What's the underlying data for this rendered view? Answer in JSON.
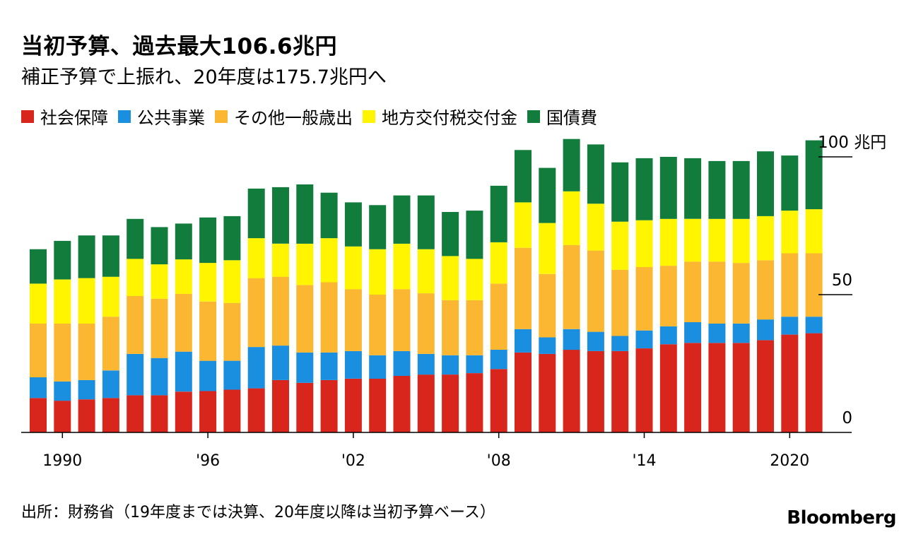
{
  "title": "当初予算、過去最大106.6兆円",
  "subtitle": "補正予算で上振れ、20年度は175.7兆円へ",
  "source": "出所：財務省（19年度までは決算、20年度以降は当初予算ベース）",
  "brand": "Bloomberg",
  "chart_data": {
    "type": "bar",
    "stacked": true,
    "grid": false,
    "legend_placement": "top",
    "x": [
      1989,
      1990,
      1991,
      1992,
      1993,
      1994,
      1995,
      1996,
      1997,
      1998,
      1999,
      2000,
      2001,
      2002,
      2003,
      2004,
      2005,
      2006,
      2007,
      2008,
      2009,
      2010,
      2011,
      2012,
      2013,
      2014,
      2015,
      2016,
      2017,
      2018,
      2019,
      2020,
      2021
    ],
    "x_tick_labels": [
      {
        "x": 1990,
        "label": "1990"
      },
      {
        "x": 1996,
        "label": "'96"
      },
      {
        "x": 2002,
        "label": "'02"
      },
      {
        "x": 2008,
        "label": "'08"
      },
      {
        "x": 2014,
        "label": "'14"
      },
      {
        "x": 2020,
        "label": "2020"
      }
    ],
    "y_ticks": [
      {
        "value": 0,
        "label": "0"
      },
      {
        "value": 50,
        "label": "50"
      },
      {
        "value": 100,
        "label": "100 兆円"
      }
    ],
    "ylim": [
      0,
      110
    ],
    "series": [
      {
        "name": "社会保障",
        "color": "#d9261c",
        "values": [
          12.5,
          11.5,
          12.0,
          12.5,
          13.5,
          13.5,
          14.8,
          15.0,
          15.5,
          16.0,
          19.0,
          18.0,
          19.0,
          19.5,
          19.5,
          20.5,
          21.0,
          21.0,
          21.5,
          23.0,
          29.0,
          28.5,
          30.0,
          29.5,
          29.5,
          30.5,
          32.0,
          32.5,
          32.5,
          32.5,
          33.5,
          35.5,
          36.0
        ]
      },
      {
        "name": "公共事業",
        "color": "#1a8fe0",
        "values": [
          7.5,
          7.0,
          7.0,
          10.0,
          15.0,
          13.5,
          14.5,
          11.0,
          10.5,
          15.0,
          12.5,
          11.0,
          10.0,
          10.0,
          8.5,
          9.0,
          7.5,
          7.0,
          6.5,
          7.0,
          8.5,
          6.0,
          7.5,
          7.0,
          5.5,
          6.5,
          6.5,
          7.5,
          7.0,
          7.0,
          7.5,
          6.5,
          6.0
        ]
      },
      {
        "name": "その他一般歳出",
        "color": "#fbb731",
        "values": [
          19.5,
          21.0,
          20.5,
          19.5,
          21.0,
          21.5,
          21.0,
          21.5,
          21.0,
          25.0,
          25.0,
          24.5,
          25.5,
          22.5,
          22.0,
          22.5,
          22.0,
          20.0,
          20.0,
          24.0,
          29.5,
          23.0,
          30.5,
          29.5,
          24.0,
          23.0,
          22.0,
          22.0,
          22.5,
          22.0,
          21.5,
          23.0,
          23.0
        ]
      },
      {
        "name": "地方交付税交付金",
        "color": "#fff500",
        "values": [
          14.5,
          16.0,
          16.5,
          14.5,
          13.5,
          12.5,
          12.5,
          14.0,
          15.5,
          14.5,
          12.0,
          15.0,
          16.0,
          15.5,
          16.5,
          16.5,
          16.0,
          16.0,
          15.0,
          15.0,
          16.5,
          18.5,
          19.5,
          17.0,
          17.5,
          17.0,
          17.0,
          15.5,
          15.5,
          16.0,
          16.0,
          15.5,
          16.0
        ]
      },
      {
        "name": "国債費",
        "color": "#117c3c",
        "values": [
          12.5,
          14.0,
          15.5,
          15.0,
          14.5,
          13.5,
          13.0,
          16.5,
          16.0,
          18.0,
          20.5,
          21.5,
          16.5,
          16.0,
          16.0,
          17.5,
          19.5,
          16.0,
          17.5,
          20.5,
          19.0,
          20.0,
          19.0,
          21.5,
          21.5,
          22.5,
          22.5,
          22.0,
          21.0,
          21.0,
          23.5,
          20.0,
          25.0
        ]
      }
    ]
  }
}
